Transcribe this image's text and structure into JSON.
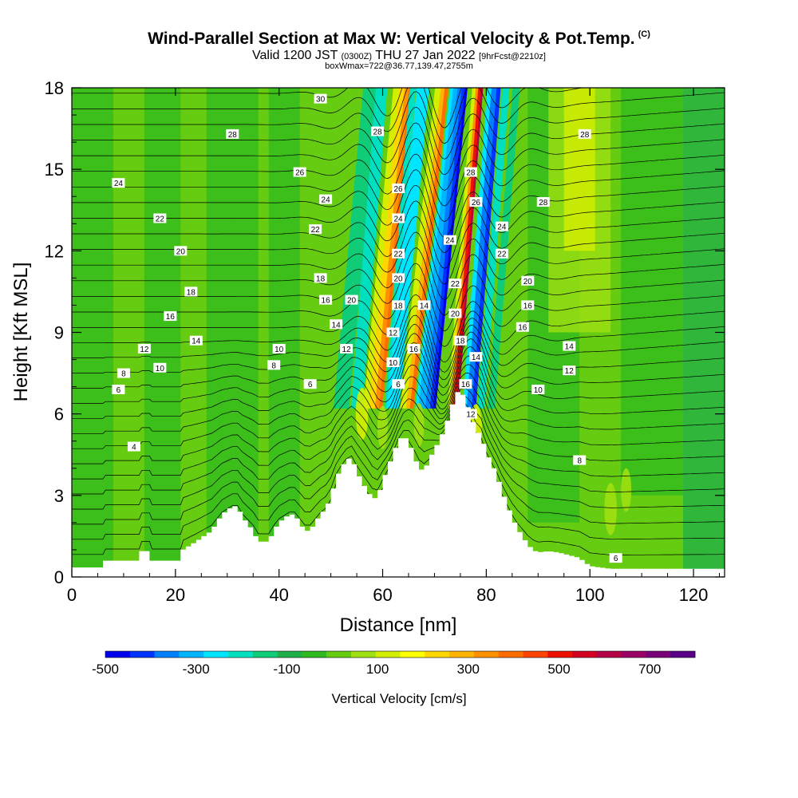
{
  "header": {
    "title": "Wind-Parallel Section at Max W: Vertical Velocity & Pot.Temp.",
    "copyright": "(C)",
    "valid_prefix": "Valid 1200 JST",
    "valid_utc": "(0300Z)",
    "valid_date": "THU 27 Jan 2022",
    "forecast_tag": "[9hrFcst@2210z]",
    "box_info": "boxWmax=722@36.77,139.47,2755m"
  },
  "chart_data": {
    "type": "heatmap",
    "xlabel": "Distance [nm]",
    "ylabel": "Height [Kft MSL]",
    "xlim": [
      0,
      126
    ],
    "ylim": [
      0,
      18
    ],
    "x_ticks": [
      0,
      20,
      40,
      60,
      80,
      100,
      120
    ],
    "y_ticks": [
      0,
      3,
      6,
      9,
      12,
      15,
      18
    ],
    "colorbar": {
      "title": "Vertical Velocity [cm/s]",
      "range": [
        -500,
        800
      ],
      "tick_labels": [
        -500,
        -300,
        -100,
        100,
        300,
        500,
        700
      ],
      "colors": [
        "#0000ee",
        "#0033ff",
        "#0080ff",
        "#00b4ff",
        "#00e5ff",
        "#00e0c0",
        "#11cc77",
        "#1fb04a",
        "#2fba1f",
        "#66cc11",
        "#9ee011",
        "#d4ee00",
        "#ffff00",
        "#ffd700",
        "#ffb400",
        "#ff9000",
        "#ff6c00",
        "#ff4500",
        "#ee1100",
        "#d40022",
        "#b40044",
        "#9a0066",
        "#7a0077",
        "#5a0088"
      ]
    },
    "theta_contour_labels": [
      {
        "x": 9,
        "y": 14.5,
        "v": "24"
      },
      {
        "x": 17,
        "y": 13.2,
        "v": "22"
      },
      {
        "x": 21,
        "y": 12.0,
        "v": "20"
      },
      {
        "x": 23,
        "y": 10.5,
        "v": "18"
      },
      {
        "x": 19,
        "y": 9.6,
        "v": "16"
      },
      {
        "x": 24,
        "y": 8.7,
        "v": "14"
      },
      {
        "x": 14,
        "y": 8.4,
        "v": "12"
      },
      {
        "x": 17,
        "y": 7.7,
        "v": "10"
      },
      {
        "x": 10,
        "y": 7.5,
        "v": "8"
      },
      {
        "x": 9,
        "y": 6.9,
        "v": "6"
      },
      {
        "x": 12,
        "y": 4.8,
        "v": "4"
      },
      {
        "x": 31,
        "y": 16.3,
        "v": "28"
      },
      {
        "x": 44,
        "y": 14.9,
        "v": "26"
      },
      {
        "x": 48,
        "y": 17.6,
        "v": "30"
      },
      {
        "x": 49,
        "y": 13.9,
        "v": "24"
      },
      {
        "x": 47,
        "y": 12.8,
        "v": "22"
      },
      {
        "x": 48,
        "y": 11.0,
        "v": "18"
      },
      {
        "x": 49,
        "y": 10.2,
        "v": "16"
      },
      {
        "x": 54,
        "y": 10.2,
        "v": "20"
      },
      {
        "x": 51,
        "y": 9.3,
        "v": "14"
      },
      {
        "x": 53,
        "y": 8.4,
        "v": "12"
      },
      {
        "x": 40,
        "y": 8.4,
        "v": "10"
      },
      {
        "x": 39,
        "y": 7.8,
        "v": "8"
      },
      {
        "x": 46,
        "y": 7.1,
        "v": "6"
      },
      {
        "x": 59,
        "y": 16.4,
        "v": "28"
      },
      {
        "x": 63,
        "y": 14.3,
        "v": "26"
      },
      {
        "x": 63,
        "y": 13.2,
        "v": "24"
      },
      {
        "x": 63,
        "y": 11.9,
        "v": "22"
      },
      {
        "x": 63,
        "y": 11.0,
        "v": "20"
      },
      {
        "x": 63,
        "y": 10.0,
        "v": "18"
      },
      {
        "x": 62,
        "y": 9.0,
        "v": "12"
      },
      {
        "x": 62,
        "y": 7.9,
        "v": "10"
      },
      {
        "x": 63,
        "y": 7.1,
        "v": "6"
      },
      {
        "x": 66,
        "y": 8.4,
        "v": "16"
      },
      {
        "x": 68,
        "y": 10.0,
        "v": "14"
      },
      {
        "x": 73,
        "y": 12.4,
        "v": "24"
      },
      {
        "x": 74,
        "y": 10.8,
        "v": "22"
      },
      {
        "x": 74,
        "y": 9.7,
        "v": "20"
      },
      {
        "x": 75,
        "y": 8.7,
        "v": "18"
      },
      {
        "x": 76,
        "y": 7.1,
        "v": "16"
      },
      {
        "x": 77,
        "y": 6.0,
        "v": "12"
      },
      {
        "x": 78,
        "y": 8.1,
        "v": "14"
      },
      {
        "x": 77,
        "y": 14.9,
        "v": "28"
      },
      {
        "x": 78,
        "y": 13.8,
        "v": "26"
      },
      {
        "x": 83,
        "y": 12.9,
        "v": "24"
      },
      {
        "x": 83,
        "y": 11.9,
        "v": "22"
      },
      {
        "x": 91,
        "y": 13.8,
        "v": "28"
      },
      {
        "x": 88,
        "y": 10.9,
        "v": "20"
      },
      {
        "x": 88,
        "y": 10.0,
        "v": "16"
      },
      {
        "x": 87,
        "y": 9.2,
        "v": "16"
      },
      {
        "x": 90,
        "y": 6.9,
        "v": "10"
      },
      {
        "x": 96,
        "y": 8.5,
        "v": "14"
      },
      {
        "x": 96,
        "y": 7.6,
        "v": "12"
      },
      {
        "x": 98,
        "y": 4.3,
        "v": "8"
      },
      {
        "x": 105,
        "y": 0.7,
        "v": "6"
      },
      {
        "x": 99,
        "y": 16.3,
        "v": "28"
      }
    ]
  }
}
